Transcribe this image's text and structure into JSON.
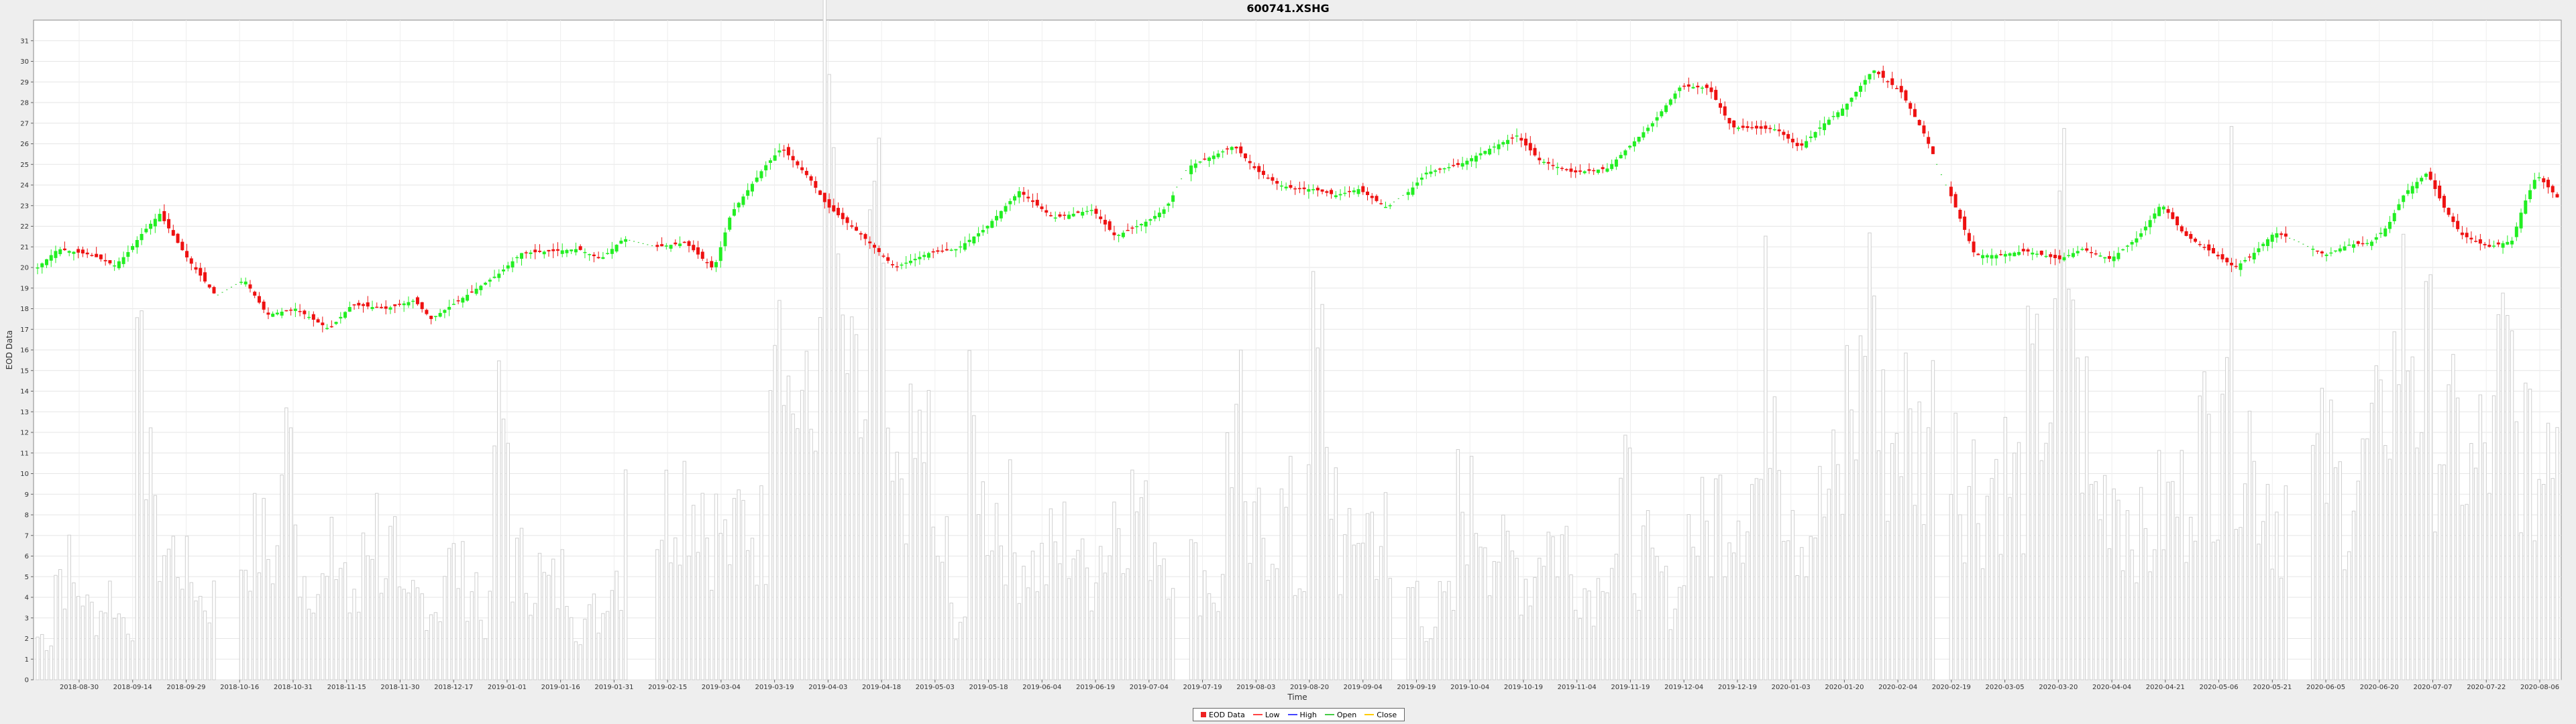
{
  "chart_data": {
    "type": "candlestick",
    "title": "600741.XSHG",
    "xlabel": "Time",
    "ylabel": "EOD Data",
    "ylim": [
      0,
      32
    ],
    "y_ticks": [
      0,
      1,
      2,
      3,
      4,
      5,
      6,
      7,
      8,
      9,
      10,
      11,
      12,
      13,
      14,
      15,
      16,
      17,
      18,
      19,
      20,
      21,
      22,
      23,
      24,
      25,
      26,
      27,
      28,
      29,
      30,
      31
    ],
    "x_tick_labels": [
      "2018-08-30",
      "2018-09-14",
      "2018-09-29",
      "2018-10-16",
      "2018-10-31",
      "2018-11-15",
      "2018-11-30",
      "2018-12-17",
      "2019-01-01",
      "2019-01-16",
      "2019-01-31",
      "2019-02-15",
      "2019-03-04",
      "2019-03-19",
      "2019-04-03",
      "2019-04-18",
      "2019-05-03",
      "2019-05-18",
      "2019-06-04",
      "2019-06-19",
      "2019-07-04",
      "2019-07-19",
      "2019-08-03",
      "2019-08-20",
      "2019-09-04",
      "2019-09-19",
      "2019-10-04",
      "2019-10-19",
      "2019-11-04",
      "2019-11-19",
      "2019-12-04",
      "2019-12-19",
      "2020-01-03",
      "2020-01-20",
      "2020-02-04",
      "2020-02-19",
      "2020-03-05",
      "2020-03-20",
      "2020-04-04",
      "2020-04-21",
      "2020-05-06",
      "2020-05-21",
      "2020-06-05",
      "2020-06-20",
      "2020-07-07",
      "2020-07-22",
      "2020-08-06"
    ],
    "legend": [
      "EOD Data",
      "Low",
      "High",
      "Open",
      "Close"
    ],
    "legend_placement": "bottom-center",
    "grid": true,
    "colors": {
      "up": "#22ee22",
      "down": "#ee1111",
      "volume": "#d4d4d4",
      "legend_eod": "#ee2222"
    },
    "price_path": [
      [
        0,
        19.9
      ],
      [
        20,
        20.9
      ],
      [
        50,
        20.6
      ],
      [
        70,
        20.1
      ],
      [
        80,
        20.6
      ],
      [
        95,
        21.7
      ],
      [
        110,
        22.6
      ],
      [
        135,
        20.4
      ],
      [
        160,
        18.6
      ],
      [
        185,
        19.4
      ],
      [
        205,
        17.7
      ],
      [
        230,
        18.0
      ],
      [
        260,
        17.0
      ],
      [
        280,
        18.2
      ],
      [
        310,
        18.0
      ],
      [
        335,
        18.4
      ],
      [
        350,
        17.5
      ],
      [
        380,
        18.6
      ],
      [
        410,
        19.7
      ],
      [
        430,
        20.7
      ],
      [
        460,
        20.8
      ],
      [
        480,
        20.9
      ],
      [
        500,
        20.4
      ],
      [
        520,
        21.4
      ],
      [
        550,
        21.0
      ],
      [
        575,
        21.2
      ],
      [
        600,
        19.9
      ],
      [
        615,
        22.6
      ],
      [
        645,
        24.9
      ],
      [
        660,
        25.8
      ],
      [
        685,
        24.3
      ],
      [
        700,
        23.0
      ],
      [
        730,
        21.6
      ],
      [
        760,
        20.0
      ],
      [
        790,
        20.7
      ],
      [
        815,
        20.9
      ],
      [
        840,
        21.9
      ],
      [
        870,
        23.7
      ],
      [
        900,
        22.4
      ],
      [
        935,
        22.8
      ],
      [
        955,
        21.5
      ],
      [
        985,
        22.3
      ],
      [
        1000,
        22.9
      ],
      [
        1020,
        24.9
      ],
      [
        1045,
        25.5
      ],
      [
        1060,
        25.9
      ],
      [
        1080,
        24.7
      ],
      [
        1100,
        24.0
      ],
      [
        1115,
        23.8
      ],
      [
        1130,
        23.8
      ],
      [
        1150,
        23.5
      ],
      [
        1170,
        23.8
      ],
      [
        1195,
        22.9
      ],
      [
        1215,
        23.7
      ],
      [
        1230,
        24.6
      ],
      [
        1260,
        25.0
      ],
      [
        1280,
        25.6
      ],
      [
        1310,
        26.4
      ],
      [
        1330,
        25.2
      ],
      [
        1360,
        24.6
      ],
      [
        1390,
        24.8
      ],
      [
        1410,
        25.9
      ],
      [
        1430,
        27.0
      ],
      [
        1455,
        28.8
      ],
      [
        1480,
        28.7
      ],
      [
        1500,
        26.8
      ],
      [
        1540,
        26.7
      ],
      [
        1560,
        25.8
      ],
      [
        1580,
        26.9
      ],
      [
        1600,
        27.8
      ],
      [
        1625,
        29.6
      ],
      [
        1650,
        28.5
      ],
      [
        1670,
        26.5
      ],
      [
        1690,
        24.0
      ],
      [
        1715,
        20.6
      ],
      [
        1735,
        20.6
      ],
      [
        1760,
        20.8
      ],
      [
        1790,
        20.4
      ],
      [
        1810,
        20.9
      ],
      [
        1835,
        20.4
      ],
      [
        1860,
        21.5
      ],
      [
        1880,
        23.1
      ],
      [
        1900,
        21.6
      ],
      [
        1920,
        20.9
      ],
      [
        1945,
        20.0
      ],
      [
        1960,
        20.6
      ],
      [
        1980,
        21.7
      ],
      [
        2000,
        21.3
      ],
      [
        2025,
        20.6
      ],
      [
        2045,
        21.1
      ],
      [
        2065,
        21.2
      ],
      [
        2080,
        22.0
      ],
      [
        2095,
        23.6
      ],
      [
        2115,
        24.6
      ],
      [
        2130,
        22.9
      ],
      [
        2145,
        21.6
      ],
      [
        2160,
        21.2
      ],
      [
        2170,
        21.0
      ],
      [
        2190,
        21.3
      ],
      [
        2200,
        23.0
      ],
      [
        2212,
        24.5
      ],
      [
        2230,
        23.4
      ]
    ],
    "volume_samples": [
      2.2,
      5.6,
      4.6,
      3.5,
      4.4,
      3.2,
      13.5,
      6.8,
      6.4,
      5.2,
      4.1,
      4.5,
      6.4,
      7.0,
      6.3,
      11.4,
      5.5,
      4.7,
      6.0,
      3.6,
      7.9,
      6.4,
      3.4,
      4.2,
      3.9,
      5.8,
      5.1,
      3.2,
      12.4,
      5.8,
      5.5,
      4.7,
      5.2,
      3.0,
      3.4,
      5.6,
      12.2,
      7.2,
      8.6,
      10.1,
      9.7,
      7.8,
      6.8,
      8.2,
      7.5,
      23.2,
      14.3,
      12.5,
      27.2,
      16.2,
      13.3,
      20.5,
      9.1,
      10.8,
      12.2,
      6.3,
      3.3,
      11.9,
      8.8,
      8.1,
      6.4,
      5.8,
      6.5,
      7.1,
      5.4,
      6.9,
      9.0,
      8.9,
      7.6,
      6.8,
      6.0,
      5.4,
      4.5,
      12.7,
      6.6,
      7.8,
      8.2,
      5.3,
      15.4,
      10.1,
      6.3,
      8.1,
      7.5,
      4.3,
      4.6,
      3.0,
      3.7,
      9.0,
      8.6,
      6.9,
      6.0,
      5.3,
      7.4,
      6.9,
      5.4,
      4.7,
      6.8,
      9.0,
      6.1,
      5.2,
      4.3,
      7.6,
      7.5,
      8.9,
      9.5,
      10.0,
      16.5,
      10.1,
      7.9,
      8.6,
      9.6,
      14.2,
      20.8,
      12.1,
      13.5,
      11.9,
      13.4,
      14.9,
      10.3,
      9.4,
      10.8,
      9.9,
      13.7,
      14.5,
      21.5,
      13.2,
      9.4,
      10.2,
      8.5,
      7.0,
      8.5,
      9.1,
      12.0,
      12.0,
      19.9,
      13.0,
      10.2,
      8.6,
      9.4,
      10.2,
      10.8,
      9.5,
      10.1,
      11.5,
      15.5,
      18.2,
      15.0,
      13.0,
      11.8,
      10.3,
      11.5,
      15.4,
      12.2,
      10.5,
      14.6
    ]
  }
}
